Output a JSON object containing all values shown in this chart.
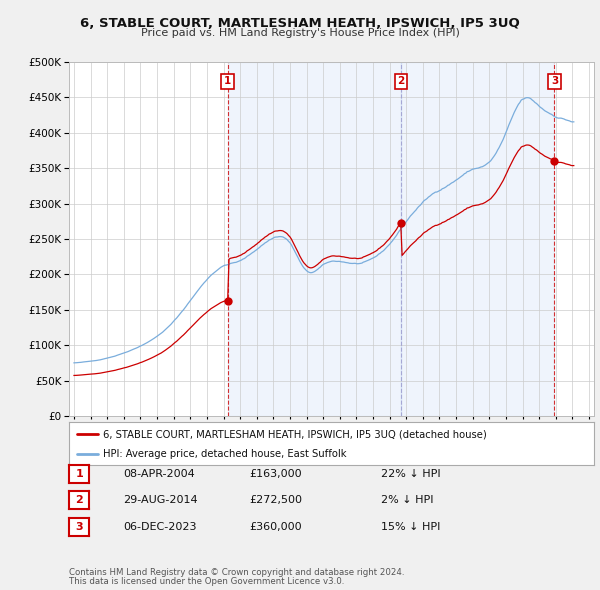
{
  "title": "6, STABLE COURT, MARTLESHAM HEATH, IPSWICH, IP5 3UQ",
  "subtitle": "Price paid vs. HM Land Registry's House Price Index (HPI)",
  "background_color": "#f0f0f0",
  "plot_bg_color": "#ffffff",
  "hpi_color": "#7aaddc",
  "price_color": "#cc0000",
  "shade_color": "#ddeeff",
  "ylim": [
    0,
    500000
  ],
  "yticks": [
    0,
    50000,
    100000,
    150000,
    200000,
    250000,
    300000,
    350000,
    400000,
    450000,
    500000
  ],
  "legend_label_price": "6, STABLE COURT, MARTLESHAM HEATH, IPSWICH, IP5 3UQ (detached house)",
  "legend_label_hpi": "HPI: Average price, detached house, East Suffolk",
  "transactions": [
    {
      "num": 1,
      "date": "08-APR-2004",
      "price": 163000,
      "pct": "22% ↓ HPI",
      "year": 2004.25
    },
    {
      "num": 2,
      "date": "29-AUG-2014",
      "price": 272500,
      "pct": "2% ↓ HPI",
      "year": 2014.67
    },
    {
      "num": 3,
      "date": "06-DEC-2023",
      "price": 360000,
      "pct": "15% ↓ HPI",
      "year": 2023.92
    }
  ],
  "footer1": "Contains HM Land Registry data © Crown copyright and database right 2024.",
  "footer2": "This data is licensed under the Open Government Licence v3.0.",
  "xmin": 1994.7,
  "xmax": 2026.3
}
